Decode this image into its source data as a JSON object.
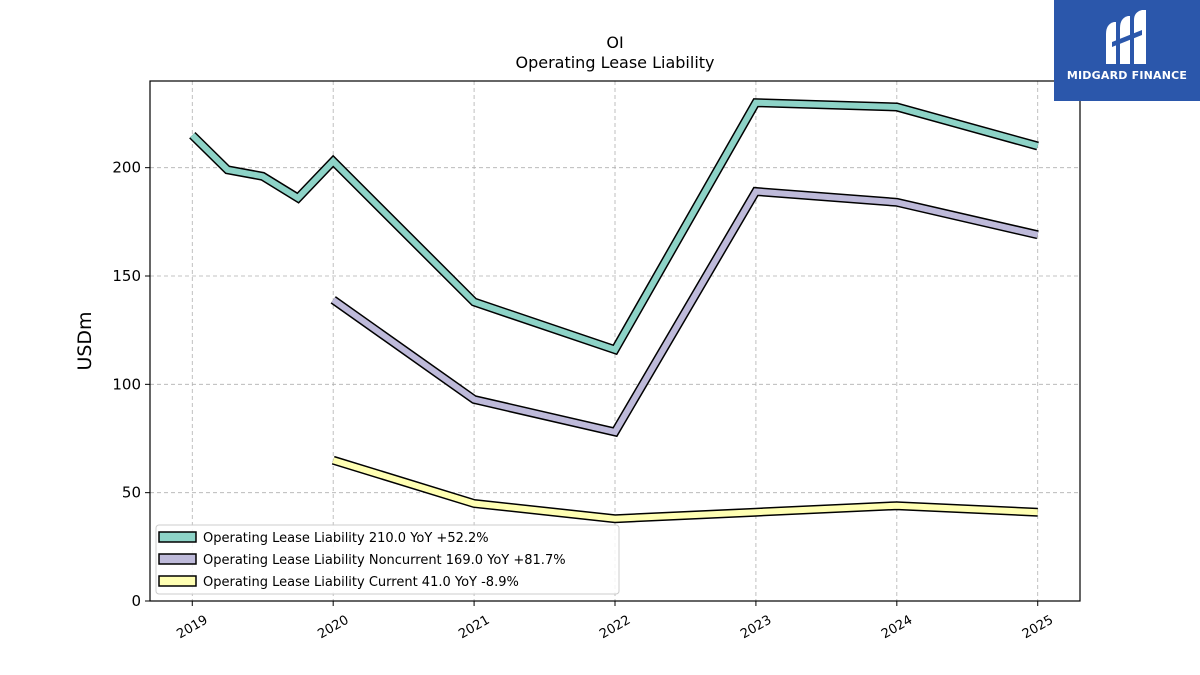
{
  "chart_data": {
    "type": "line",
    "title": "OI",
    "subtitle": "Operating Lease Liability",
    "ylabel": "USDm",
    "xlabel": "",
    "ylim": [
      0,
      240
    ],
    "xlim": [
      2018.7,
      2025.3
    ],
    "yticks": [
      0,
      50,
      100,
      150,
      200
    ],
    "xticks": [
      "2019",
      "2020",
      "2021",
      "2022",
      "2023",
      "2024",
      "2025"
    ],
    "grid": true,
    "legend_position": "lower-left",
    "series": [
      {
        "name": "Operating Lease Liability  210.0 YoY +52.2%",
        "color": "#8dd3c7",
        "points": [
          [
            2019.0,
            215
          ],
          [
            2019.25,
            199
          ],
          [
            2019.5,
            196
          ],
          [
            2019.75,
            186
          ],
          [
            2020.0,
            203
          ],
          [
            2021.0,
            138
          ],
          [
            2022.0,
            116
          ],
          [
            2023.0,
            230
          ],
          [
            2024.0,
            228
          ],
          [
            2025.0,
            210
          ]
        ]
      },
      {
        "name": "Operating Lease Liability Noncurrent  169.0 YoY +81.7%",
        "color": "#bebada",
        "points": [
          [
            2020.0,
            139
          ],
          [
            2021.0,
            93
          ],
          [
            2022.0,
            78
          ],
          [
            2023.0,
            189
          ],
          [
            2024.0,
            184
          ],
          [
            2025.0,
            169
          ]
        ]
      },
      {
        "name": "Operating Lease Liability Current  41.0 YoY -8.9%",
        "color": "#ffffb3",
        "points": [
          [
            2020.0,
            65
          ],
          [
            2021.0,
            45
          ],
          [
            2022.0,
            38
          ],
          [
            2023.0,
            41
          ],
          [
            2024.0,
            44
          ],
          [
            2025.0,
            41
          ]
        ]
      }
    ]
  },
  "logo": {
    "text": "MIDGARD FINANCE",
    "background": "#2b57ab"
  }
}
